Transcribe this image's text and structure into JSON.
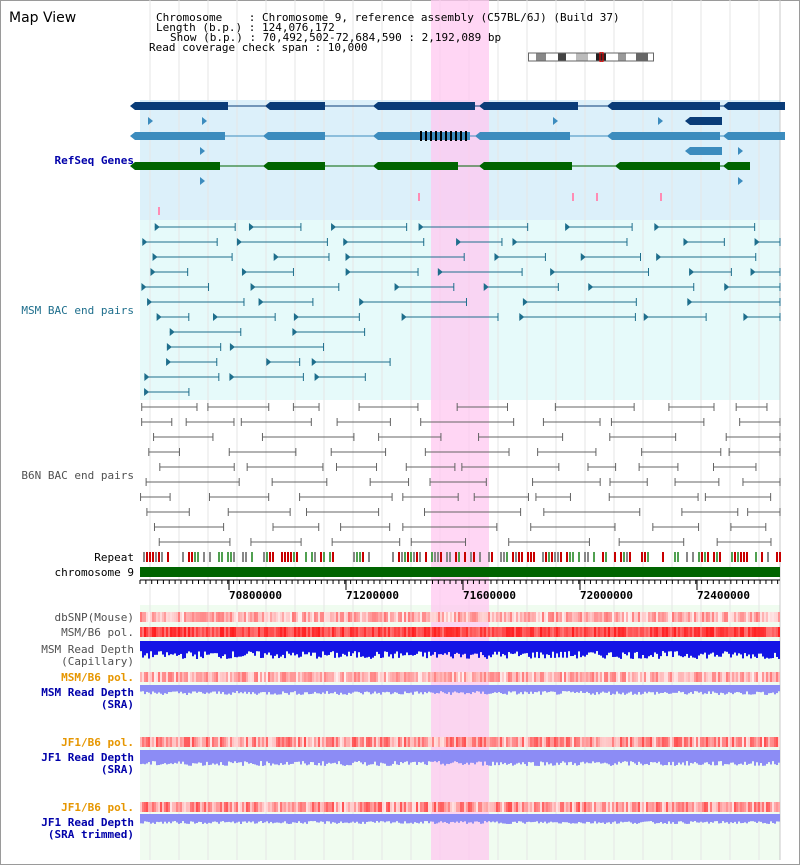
{
  "window": {
    "title": "Map View"
  },
  "info": {
    "chromosome_label": "Chromosome    : Chromosome 9, reference assembly (C57BL/6J) (Build 37)",
    "length_label": "Length (b.p.) : 124,076,172",
    "show_label": "Show (b.p.) : 70,492,502-72,684,590 : 2,192,089 bp",
    "span_label": "Read coverage check span : 10,000"
  },
  "tracks": {
    "refseq": "RefSeq Genes",
    "msm_bac": "MSM BAC end pairs",
    "b6n_bac": "B6N BAC end pairs",
    "repeat": "Repeat",
    "chromosome": "chromosome 9",
    "dbsnp": "dbSNP(Mouse)",
    "msm_pol": "MSM/B6 pol.",
    "msm_depth_cap_1": "MSM Read Depth",
    "msm_depth_cap_2": "(Capillary)",
    "msm_pol_orange": "MSM/B6 pol.",
    "msm_depth_sra_1": "MSM Read Depth",
    "msm_depth_sra_2": "(SRA)",
    "jf1_pol_1": "JF1/B6 pol.",
    "jf1_depth_1": "JF1 Read Depth",
    "jf1_depth_1b": "(SRA)",
    "jf1_pol_2": "JF1/B6 pol.",
    "jf1_depth_2": "JF1 Read Depth",
    "jf1_depth_2b": "(SRA trimmed)"
  },
  "axis": {
    "ticks": [
      "70800000",
      "71200000",
      "71600000",
      "72000000",
      "72400000"
    ]
  },
  "colors": {
    "refseq_bg": "#dcf0fa",
    "msm_bg": "#e6fafa",
    "gene_dark": "#0a3c78",
    "gene_mid": "#3c8cbe",
    "gene_green": "#006400",
    "highlight": "#ffc8f0",
    "bac_msm": "#1e6e8c",
    "bac_b6n": "#646464",
    "chrom": "#006400",
    "depth_cap": "#1414e6",
    "depth_sra": "#8c8cf5",
    "label_blue": "#0000aa",
    "label_orange": "#e69600",
    "label_teal": "#1e6e8c",
    "label_gray": "#505050"
  }
}
